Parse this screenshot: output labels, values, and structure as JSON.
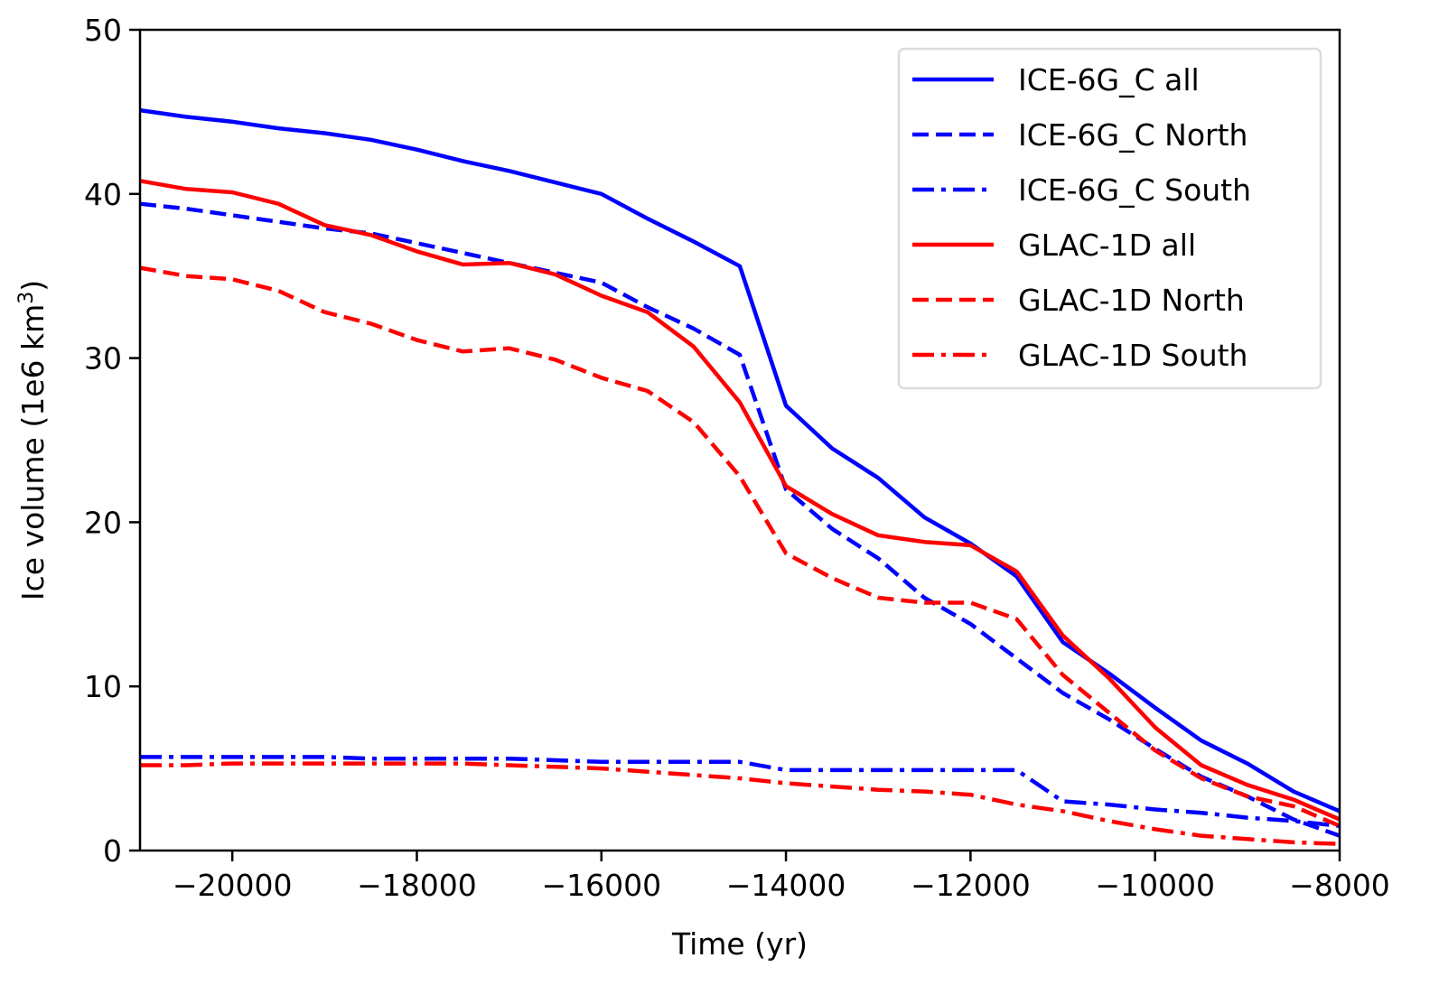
{
  "chart_data": {
    "type": "line",
    "title": "",
    "xlabel": "Time (yr)",
    "ylabel_main": "Ice volume (1e6 km",
    "ylabel_sup": "3",
    "ylabel_close": ")",
    "xlim": [
      -21000,
      -8000
    ],
    "ylim": [
      0,
      50
    ],
    "xticks": [
      -20000,
      -18000,
      -16000,
      -14000,
      -12000,
      -10000,
      -8000
    ],
    "xtick_labels": [
      "−20000",
      "−18000",
      "−16000",
      "−14000",
      "−12000",
      "−10000",
      "−8000"
    ],
    "yticks": [
      0,
      10,
      20,
      30,
      40,
      50
    ],
    "ytick_labels": [
      "0",
      "10",
      "20",
      "30",
      "40",
      "50"
    ],
    "grid": false,
    "legend_position": "top-right",
    "x": [
      -21000,
      -20500,
      -20000,
      -19500,
      -19000,
      -18500,
      -18000,
      -17500,
      -17000,
      -16500,
      -16000,
      -15500,
      -15000,
      -14500,
      -14000,
      -13500,
      -13000,
      -12500,
      -12000,
      -11500,
      -11000,
      -10500,
      -10000,
      -9500,
      -9000,
      -8500,
      -8000
    ],
    "series": [
      {
        "name": "ICE-6G_C all",
        "color": "#0000ff",
        "style": "solid",
        "values": [
          45.1,
          44.7,
          44.4,
          44.0,
          43.7,
          43.3,
          42.7,
          42.0,
          41.4,
          40.7,
          40.0,
          38.5,
          37.1,
          35.6,
          27.1,
          24.5,
          22.7,
          20.3,
          18.7,
          16.7,
          12.7,
          10.8,
          8.7,
          6.7,
          5.3,
          3.6,
          2.4
        ]
      },
      {
        "name": "ICE-6G_C North",
        "color": "#0000ff",
        "style": "dashed",
        "values": [
          39.4,
          39.1,
          38.7,
          38.3,
          37.9,
          37.6,
          37.0,
          36.4,
          35.8,
          35.2,
          34.6,
          33.1,
          31.8,
          30.2,
          22.0,
          19.6,
          17.8,
          15.4,
          13.8,
          11.7,
          9.6,
          8.0,
          6.2,
          4.5,
          3.3,
          1.9,
          0.9
        ]
      },
      {
        "name": "ICE-6G_C South",
        "color": "#0000ff",
        "style": "dashdot",
        "values": [
          5.7,
          5.7,
          5.7,
          5.7,
          5.7,
          5.6,
          5.6,
          5.6,
          5.6,
          5.5,
          5.4,
          5.4,
          5.4,
          5.4,
          4.9,
          4.9,
          4.9,
          4.9,
          4.9,
          4.9,
          3.0,
          2.8,
          2.5,
          2.3,
          2.0,
          1.8,
          1.5
        ]
      },
      {
        "name": "GLAC-1D all",
        "color": "#ff0000",
        "style": "solid",
        "values": [
          40.8,
          40.3,
          40.1,
          39.4,
          38.1,
          37.5,
          36.5,
          35.7,
          35.8,
          35.1,
          33.8,
          32.8,
          30.7,
          27.3,
          22.2,
          20.5,
          19.2,
          18.8,
          18.6,
          17.0,
          13.1,
          10.5,
          7.5,
          5.2,
          4.0,
          3.1,
          1.9
        ]
      },
      {
        "name": "GLAC-1D North",
        "color": "#ff0000",
        "style": "dashed",
        "values": [
          35.5,
          35.0,
          34.8,
          34.1,
          32.8,
          32.1,
          31.1,
          30.4,
          30.6,
          29.9,
          28.8,
          28.0,
          26.1,
          22.8,
          18.1,
          16.6,
          15.4,
          15.1,
          15.1,
          14.1,
          10.7,
          8.4,
          6.1,
          4.4,
          3.3,
          2.7,
          1.5
        ]
      },
      {
        "name": "GLAC-1D South",
        "color": "#ff0000",
        "style": "dashdot",
        "values": [
          5.2,
          5.2,
          5.3,
          5.3,
          5.3,
          5.3,
          5.3,
          5.3,
          5.2,
          5.1,
          5.0,
          4.8,
          4.6,
          4.4,
          4.1,
          3.9,
          3.7,
          3.6,
          3.4,
          2.8,
          2.4,
          1.8,
          1.3,
          0.9,
          0.7,
          0.5,
          0.4
        ]
      }
    ]
  }
}
